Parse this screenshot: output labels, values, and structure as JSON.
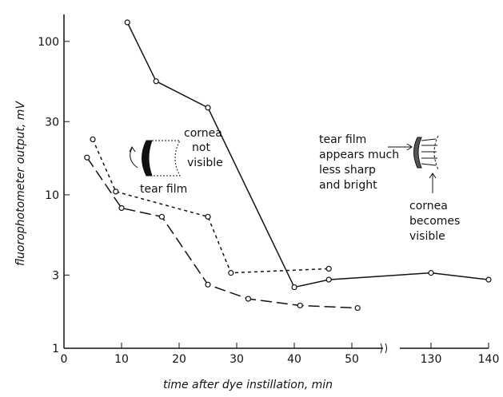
{
  "chart_data": {
    "type": "line",
    "x_label": "time after dye instillation, min",
    "y_label": "fluorophotometer output, mV",
    "log_y": true,
    "xlim": [
      0,
      140
    ],
    "x_break": [
      55,
      125
    ],
    "xticks": [
      0,
      10,
      20,
      30,
      40,
      50,
      130,
      140
    ],
    "ylim": [
      1,
      150
    ],
    "yticks": [
      1,
      3,
      10,
      30,
      100
    ],
    "series": [
      {
        "style": "solid",
        "color": "#111111",
        "x": [
          11,
          16,
          25,
          40,
          46,
          130,
          140
        ],
        "values": [
          133,
          55,
          37,
          2.5,
          2.8,
          3.1,
          2.8
        ]
      },
      {
        "style": "short-dash",
        "color": "#111111",
        "x": [
          5,
          9,
          25,
          29,
          46
        ],
        "values": [
          23,
          10.5,
          7.2,
          3.1,
          3.3
        ]
      },
      {
        "style": "long-dash",
        "color": "#111111",
        "x": [
          4,
          10,
          17,
          25,
          32,
          41,
          51
        ],
        "values": [
          17.5,
          8.2,
          7.2,
          2.6,
          2.1,
          1.9,
          1.83
        ]
      }
    ],
    "annotations": {
      "left": [
        "cornea",
        "not",
        "visible",
        "tear film"
      ],
      "right": [
        "tear film",
        "appears much",
        "less sharp",
        "and bright",
        "cornea",
        "becomes",
        "visible"
      ]
    }
  }
}
